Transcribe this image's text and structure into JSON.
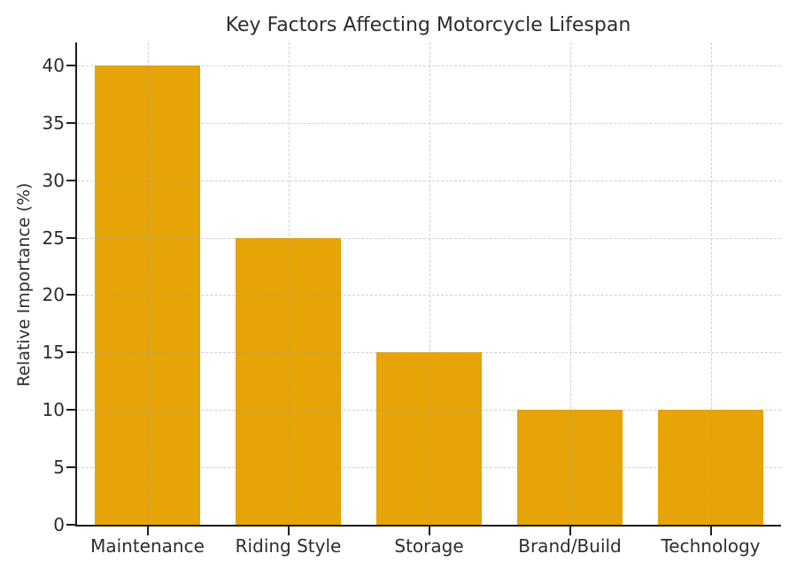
{
  "figure": {
    "background": "#ffffff"
  },
  "chart_data": {
    "type": "bar",
    "title": "Key Factors Affecting Motorcycle Lifespan",
    "categories": [
      "Maintenance",
      "Riding Style",
      "Storage",
      "Brand/Build",
      "Technology"
    ],
    "values": [
      40,
      25,
      15,
      10,
      10
    ],
    "xlabel": "",
    "ylabel": "Relative Importance (%)",
    "ylim": [
      0,
      42
    ],
    "yticks": [
      0,
      5,
      10,
      15,
      20,
      25,
      30,
      35,
      40
    ],
    "bar_color": "#e6a406",
    "axis_color": "#1c1c1c",
    "text_color": "#2d2d2d",
    "grid": true,
    "grid_color": "rgba(160,160,160,0.5)",
    "grid_style": "dashed",
    "legend_position": "none",
    "bar_width_fraction": 0.75
  }
}
